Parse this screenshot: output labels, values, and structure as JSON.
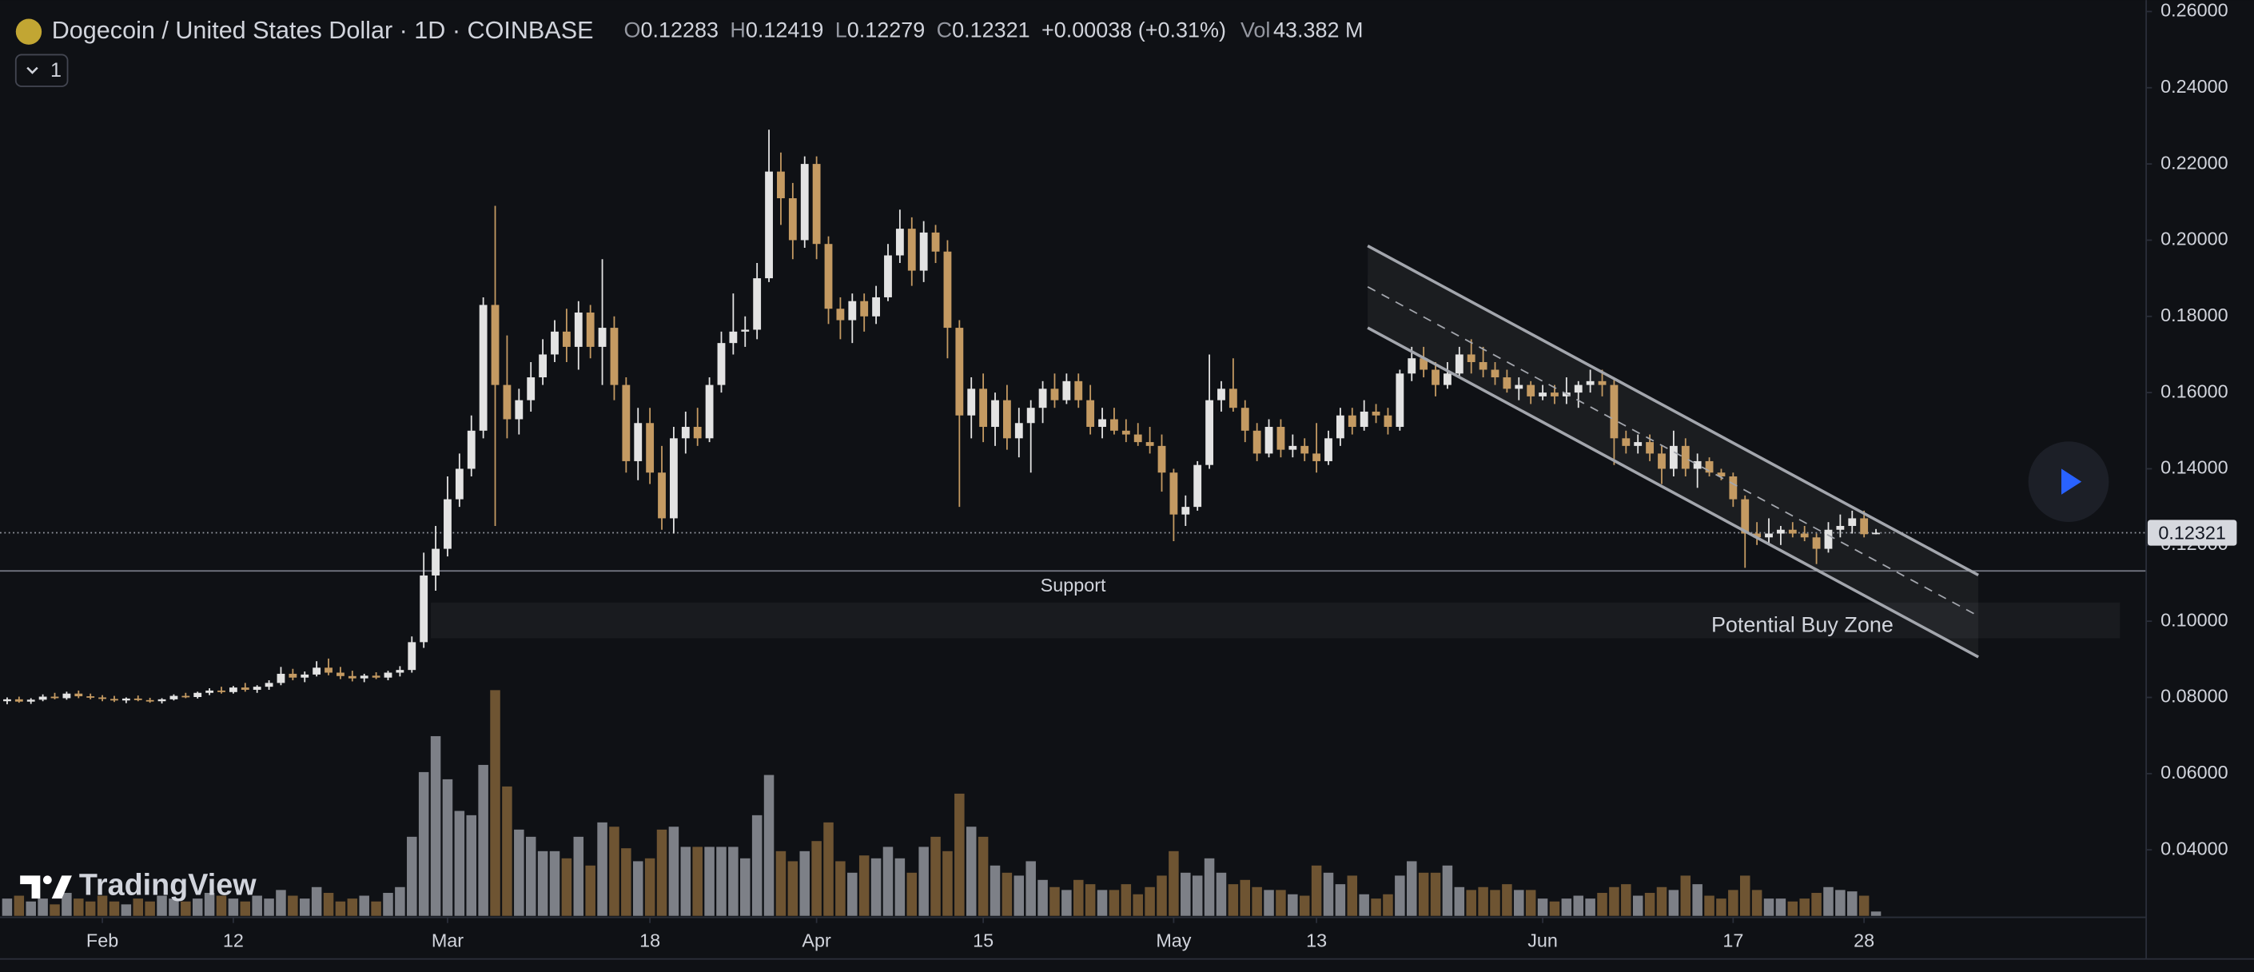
{
  "chart_data": {
    "type": "candlestick",
    "title": "Dogecoin / United States Dollar · 1D · COINBASE",
    "ohlc_labels": [
      "O",
      "H",
      "L",
      "C"
    ],
    "change": "+0.00038 (+0.31%)",
    "volume_label": "Vol",
    "volume_last_label": "43.382 M",
    "indicator_count": 1,
    "logo_text": "TradingView",
    "up_color": "#e3e3e3",
    "down_color": "#c49a62",
    "volume_up_color": "#7d8087",
    "volume_down_color": "#6e5432",
    "xlim": [
      -0.6,
      179.7
    ],
    "ylim": [
      0.0223,
      0.263
    ],
    "yticks": [
      {
        "value": 0.26,
        "label": "0.26000"
      },
      {
        "value": 0.24,
        "label": "0.24000"
      },
      {
        "value": 0.22,
        "label": "0.22000"
      },
      {
        "value": 0.2,
        "label": "0.20000"
      },
      {
        "value": 0.18,
        "label": "0.18000"
      },
      {
        "value": 0.16,
        "label": "0.16000"
      },
      {
        "value": 0.14,
        "label": "0.14000"
      },
      {
        "value": 0.12,
        "label": "0.12000"
      },
      {
        "value": 0.1,
        "label": "0.10000"
      },
      {
        "value": 0.08,
        "label": "0.08000"
      },
      {
        "value": 0.06,
        "label": "0.06000"
      },
      {
        "value": 0.04,
        "label": "0.04000"
      }
    ],
    "xticks": [
      {
        "value": 8,
        "label": "Feb"
      },
      {
        "value": 19,
        "label": "12"
      },
      {
        "value": 37,
        "label": "Mar"
      },
      {
        "value": 54,
        "label": "18"
      },
      {
        "value": 68,
        "label": "Apr"
      },
      {
        "value": 82,
        "label": "15"
      },
      {
        "value": 98,
        "label": "May"
      },
      {
        "value": 110,
        "label": "13"
      },
      {
        "value": 129,
        "label": "Jun"
      },
      {
        "value": 145,
        "label": "17"
      },
      {
        "value": 156,
        "label": "28"
      }
    ],
    "open": [
      0.079,
      0.0795,
      0.0789,
      0.0794,
      0.0802,
      0.0798,
      0.081,
      0.0803,
      0.08,
      0.0796,
      0.0792,
      0.0797,
      0.0793,
      0.079,
      0.0795,
      0.0804,
      0.0801,
      0.0812,
      0.0818,
      0.0814,
      0.0826,
      0.082,
      0.0828,
      0.0838,
      0.0862,
      0.0852,
      0.086,
      0.0878,
      0.0865,
      0.0856,
      0.085,
      0.0857,
      0.0852,
      0.0865,
      0.0872,
      0.0945,
      0.112,
      0.119,
      0.132,
      0.14,
      0.15,
      0.183,
      0.162,
      0.153,
      0.158,
      0.164,
      0.17,
      0.176,
      0.172,
      0.181,
      0.172,
      0.177,
      0.162,
      0.142,
      0.152,
      0.139,
      0.127,
      0.148,
      0.151,
      0.148,
      0.162,
      0.173,
      0.176,
      0.1765,
      0.19,
      0.218,
      0.211,
      0.2,
      0.22,
      0.199,
      0.182,
      0.179,
      0.184,
      0.18,
      0.185,
      0.196,
      0.203,
      0.192,
      0.202,
      0.197,
      0.177,
      0.154,
      0.161,
      0.151,
      0.158,
      0.148,
      0.152,
      0.156,
      0.161,
      0.158,
      0.163,
      0.158,
      0.151,
      0.153,
      0.15,
      0.149,
      0.147,
      0.146,
      0.139,
      0.128,
      0.13,
      0.141,
      0.158,
      0.161,
      0.156,
      0.15,
      0.144,
      0.151,
      0.145,
      0.146,
      0.144,
      0.142,
      0.148,
      0.154,
      0.151,
      0.155,
      0.154,
      0.151,
      0.165,
      0.169,
      0.166,
      0.162,
      0.165,
      0.17,
      0.168,
      0.166,
      0.164,
      0.161,
      0.162,
      0.159,
      0.16,
      0.159,
      0.16,
      0.162,
      0.163,
      0.162,
      0.148,
      0.146,
      0.147,
      0.144,
      0.14,
      0.146,
      0.14,
      0.142,
      0.139,
      0.138,
      0.132,
      0.123,
      0.122,
      0.123,
      0.124,
      0.123,
      0.122,
      0.119,
      0.124,
      0.125,
      0.127,
      0.12283
    ],
    "high": [
      0.08,
      0.0802,
      0.0798,
      0.0808,
      0.0812,
      0.0815,
      0.0818,
      0.081,
      0.0806,
      0.0804,
      0.08,
      0.0805,
      0.0799,
      0.0798,
      0.0808,
      0.0812,
      0.0815,
      0.0824,
      0.0828,
      0.083,
      0.0838,
      0.0832,
      0.0845,
      0.088,
      0.0875,
      0.0868,
      0.0895,
      0.0902,
      0.088,
      0.087,
      0.0862,
      0.0866,
      0.087,
      0.0882,
      0.096,
      0.118,
      0.125,
      0.138,
      0.144,
      0.154,
      0.185,
      0.209,
      0.175,
      0.161,
      0.168,
      0.174,
      0.179,
      0.182,
      0.184,
      0.183,
      0.195,
      0.18,
      0.164,
      0.156,
      0.156,
      0.146,
      0.151,
      0.155,
      0.156,
      0.164,
      0.176,
      0.186,
      0.18,
      0.194,
      0.229,
      0.223,
      0.215,
      0.222,
      0.222,
      0.201,
      0.185,
      0.186,
      0.186,
      0.188,
      0.199,
      0.208,
      0.206,
      0.205,
      0.204,
      0.2,
      0.179,
      0.164,
      0.165,
      0.16,
      0.162,
      0.156,
      0.158,
      0.163,
      0.165,
      0.165,
      0.165,
      0.162,
      0.156,
      0.156,
      0.153,
      0.152,
      0.151,
      0.149,
      0.14,
      0.133,
      0.142,
      0.17,
      0.163,
      0.169,
      0.158,
      0.152,
      0.153,
      0.153,
      0.149,
      0.148,
      0.152,
      0.15,
      0.156,
      0.156,
      0.158,
      0.157,
      0.156,
      0.166,
      0.172,
      0.172,
      0.168,
      0.168,
      0.172,
      0.174,
      0.172,
      0.168,
      0.166,
      0.164,
      0.163,
      0.162,
      0.162,
      0.164,
      0.163,
      0.166,
      0.166,
      0.164,
      0.15,
      0.149,
      0.149,
      0.146,
      0.15,
      0.148,
      0.144,
      0.143,
      0.14,
      0.139,
      0.133,
      0.126,
      0.127,
      0.125,
      0.126,
      0.125,
      0.123,
      0.126,
      0.128,
      0.129,
      0.129,
      0.12419
    ],
    "low": [
      0.0782,
      0.0786,
      0.0783,
      0.079,
      0.0795,
      0.0794,
      0.0798,
      0.0795,
      0.079,
      0.0788,
      0.0785,
      0.079,
      0.0786,
      0.0784,
      0.0792,
      0.0798,
      0.0797,
      0.0806,
      0.081,
      0.081,
      0.0815,
      0.0812,
      0.082,
      0.0832,
      0.0845,
      0.084,
      0.0855,
      0.0858,
      0.0848,
      0.0842,
      0.084,
      0.0848,
      0.0845,
      0.0855,
      0.0865,
      0.093,
      0.108,
      0.117,
      0.13,
      0.138,
      0.148,
      0.125,
      0.148,
      0.149,
      0.155,
      0.162,
      0.168,
      0.168,
      0.166,
      0.169,
      0.162,
      0.158,
      0.139,
      0.137,
      0.136,
      0.124,
      0.123,
      0.144,
      0.146,
      0.147,
      0.16,
      0.17,
      0.172,
      0.174,
      0.189,
      0.204,
      0.195,
      0.198,
      0.195,
      0.178,
      0.174,
      0.173,
      0.176,
      0.178,
      0.184,
      0.194,
      0.188,
      0.189,
      0.194,
      0.169,
      0.13,
      0.148,
      0.147,
      0.146,
      0.145,
      0.143,
      0.139,
      0.152,
      0.156,
      0.157,
      0.156,
      0.149,
      0.148,
      0.149,
      0.147,
      0.146,
      0.144,
      0.134,
      0.121,
      0.125,
      0.129,
      0.14,
      0.155,
      0.155,
      0.147,
      0.142,
      0.143,
      0.143,
      0.143,
      0.142,
      0.139,
      0.141,
      0.146,
      0.149,
      0.15,
      0.152,
      0.149,
      0.15,
      0.163,
      0.164,
      0.159,
      0.161,
      0.164,
      0.165,
      0.164,
      0.162,
      0.16,
      0.158,
      0.157,
      0.158,
      0.157,
      0.157,
      0.156,
      0.16,
      0.159,
      0.141,
      0.144,
      0.144,
      0.142,
      0.136,
      0.138,
      0.138,
      0.135,
      0.138,
      0.137,
      0.13,
      0.114,
      0.12,
      0.12,
      0.12,
      0.122,
      0.121,
      0.115,
      0.118,
      0.122,
      0.123,
      0.122,
      0.12279
    ],
    "close": [
      0.0795,
      0.0789,
      0.0794,
      0.0802,
      0.0798,
      0.081,
      0.0803,
      0.08,
      0.0796,
      0.0792,
      0.0797,
      0.0793,
      0.079,
      0.0795,
      0.0804,
      0.0801,
      0.0812,
      0.0818,
      0.0814,
      0.0826,
      0.082,
      0.0828,
      0.0838,
      0.0862,
      0.0852,
      0.086,
      0.0878,
      0.0865,
      0.0856,
      0.085,
      0.0857,
      0.0852,
      0.0865,
      0.0872,
      0.0945,
      0.112,
      0.119,
      0.132,
      0.14,
      0.15,
      0.183,
      0.162,
      0.153,
      0.158,
      0.164,
      0.17,
      0.176,
      0.172,
      0.181,
      0.172,
      0.177,
      0.162,
      0.142,
      0.152,
      0.139,
      0.127,
      0.148,
      0.151,
      0.148,
      0.162,
      0.173,
      0.176,
      0.1765,
      0.19,
      0.218,
      0.211,
      0.2,
      0.22,
      0.199,
      0.182,
      0.179,
      0.184,
      0.18,
      0.185,
      0.196,
      0.203,
      0.192,
      0.202,
      0.197,
      0.177,
      0.154,
      0.161,
      0.151,
      0.158,
      0.148,
      0.152,
      0.156,
      0.161,
      0.158,
      0.163,
      0.158,
      0.151,
      0.153,
      0.15,
      0.149,
      0.147,
      0.146,
      0.139,
      0.128,
      0.13,
      0.141,
      0.158,
      0.161,
      0.156,
      0.15,
      0.144,
      0.151,
      0.145,
      0.146,
      0.144,
      0.142,
      0.148,
      0.154,
      0.151,
      0.155,
      0.154,
      0.151,
      0.165,
      0.169,
      0.166,
      0.162,
      0.165,
      0.17,
      0.168,
      0.166,
      0.164,
      0.161,
      0.162,
      0.159,
      0.16,
      0.159,
      0.16,
      0.162,
      0.163,
      0.162,
      0.148,
      0.146,
      0.147,
      0.144,
      0.14,
      0.146,
      0.14,
      0.142,
      0.139,
      0.138,
      0.132,
      0.123,
      0.122,
      0.123,
      0.124,
      0.123,
      0.122,
      0.119,
      0.124,
      0.125,
      0.127,
      0.12283,
      0.12321
    ],
    "volume": [
      173,
      202,
      144,
      173,
      115,
      230,
      173,
      144,
      202,
      144,
      115,
      173,
      144,
      202,
      173,
      144,
      173,
      230,
      202,
      173,
      144,
      202,
      173,
      259,
      202,
      173,
      288,
      230,
      144,
      173,
      202,
      144,
      230,
      288,
      792,
      1440,
      1800,
      1368,
      1051,
      1008,
      1512,
      2261,
      1296,
      864,
      792,
      648,
      648,
      576,
      792,
      504,
      936,
      893,
      677,
      547,
      576,
      864,
      893,
      691,
      691,
      691,
      691,
      691,
      576,
      1008,
      1411,
      648,
      547,
      648,
      749,
      936,
      547,
      432,
      605,
      576,
      691,
      576,
      432,
      691,
      792,
      648,
      1224,
      893,
      792,
      504,
      432,
      403,
      547,
      360,
      288,
      259,
      360,
      317,
      259,
      259,
      317,
      216,
      288,
      403,
      648,
      432,
      403,
      576,
      432,
      317,
      360,
      288,
      259,
      259,
      216,
      202,
      504,
      432,
      317,
      403,
      216,
      173,
      216,
      403,
      547,
      432,
      432,
      504,
      288,
      259,
      288,
      259,
      317,
      259,
      259,
      173,
      144,
      173,
      202,
      173,
      230,
      288,
      317,
      202,
      230,
      288,
      259,
      403,
      317,
      202,
      173,
      259,
      403,
      259,
      173,
      173,
      144,
      173,
      230,
      288,
      259,
      245,
      202,
      43.382
    ],
    "annotations": {
      "support": {
        "text": "Support",
        "price": 0.1132
      },
      "buy_zone": {
        "text": "Potential Buy Zone",
        "price": [
          0.0955,
          0.1049
        ],
        "x": [
          35.6,
          177.5
        ]
      },
      "channel": {
        "x": [
          114.3,
          165.6
        ],
        "upper": [
          0.1985,
          0.1121
        ],
        "lower": [
          0.177,
          0.0906
        ]
      }
    }
  }
}
